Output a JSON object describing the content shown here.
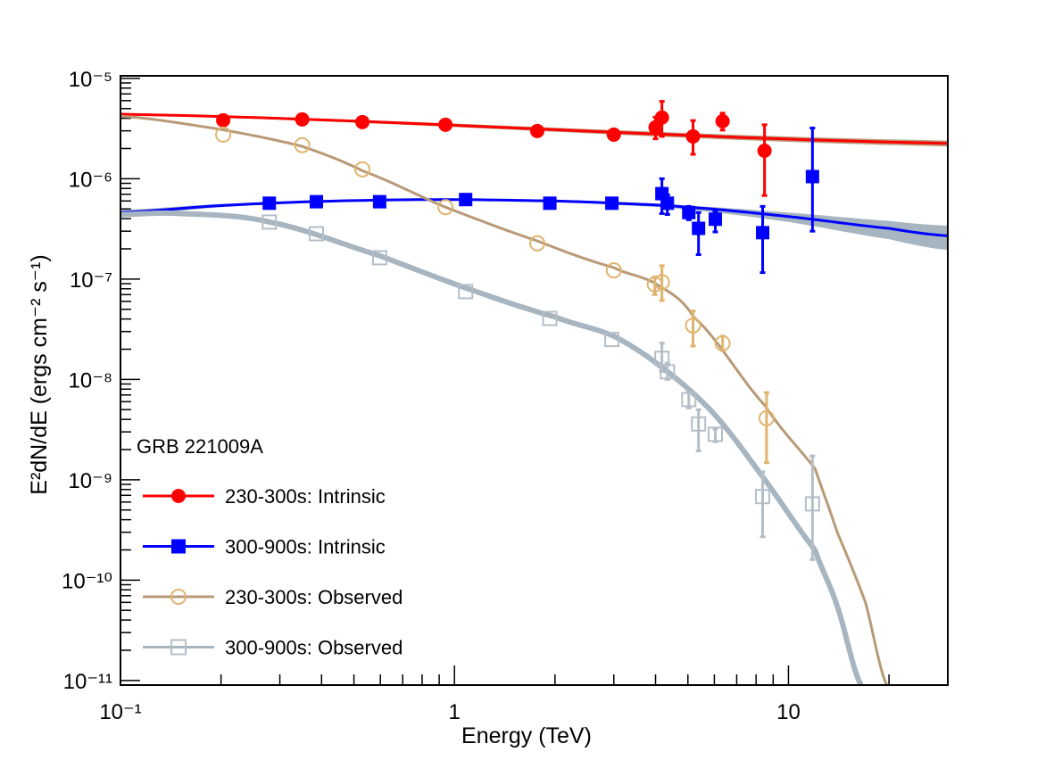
{
  "chart_data": {
    "type": "scatter",
    "title": "",
    "xlabel": "Energy (TeV)",
    "ylabel": "E²dN/dE (ergs cm⁻² s⁻¹)",
    "xscale": "log",
    "yscale": "log",
    "xlim": [
      0.1,
      30
    ],
    "ylim": [
      9e-12,
      1.06e-05
    ],
    "grid": false,
    "x_tick_labels": [
      {
        "value": 0.1,
        "label": "10⁻¹"
      },
      {
        "value": 1,
        "label": "1"
      },
      {
        "value": 10,
        "label": "10"
      }
    ],
    "y_tick_labels": [
      {
        "value": 1e-05,
        "label": "10⁻⁵"
      },
      {
        "value": 1e-06,
        "label": "10⁻⁶"
      },
      {
        "value": 1e-07,
        "label": "10⁻⁷"
      },
      {
        "value": 1e-08,
        "label": "10⁻⁸"
      },
      {
        "value": 1e-09,
        "label": "10⁻⁹"
      },
      {
        "value": 1e-10,
        "label": "10⁻¹⁰"
      },
      {
        "value": 1e-11,
        "label": "10⁻¹¹"
      }
    ],
    "legend": {
      "title": "GRB 221009A",
      "placement": "bottom-left"
    },
    "series": [
      {
        "name": "230-300s: Intrinsic",
        "color": "#ff0000",
        "marker": "filled-circle",
        "points": [
          {
            "x": 0.203,
            "y": 3.82e-06
          },
          {
            "x": 0.35,
            "y": 3.9e-06
          },
          {
            "x": 0.53,
            "y": 3.67e-06
          },
          {
            "x": 0.94,
            "y": 3.45e-06
          },
          {
            "x": 1.77,
            "y": 2.99e-06
          },
          {
            "x": 3.0,
            "y": 2.75e-06
          },
          {
            "x": 4.0,
            "y": 3.25e-06,
            "ylo": 2.5e-06,
            "yhi": 4.1e-06
          },
          {
            "x": 4.18,
            "y": 4.07e-06,
            "ylo": 2.64e-06,
            "yhi": 5.9e-06
          },
          {
            "x": 5.18,
            "y": 2.64e-06,
            "ylo": 1.75e-06,
            "yhi": 3.8e-06
          },
          {
            "x": 6.35,
            "y": 3.74e-06,
            "ylo": 3.05e-06,
            "yhi": 4.5e-06
          },
          {
            "x": 8.48,
            "y": 1.9e-06,
            "ylo": 6.8e-07,
            "yhi": 3.45e-06
          }
        ],
        "model": {
          "color": "#ff0000",
          "band_color": "#b89a78",
          "x": [
            0.1,
            30
          ],
          "y": [
            4.4e-06,
            2.25e-06
          ],
          "band_lo": [
            4.3e-06,
            2.1e-06
          ],
          "band_hi": [
            4.5e-06,
            2.4e-06
          ]
        }
      },
      {
        "name": "300-900s: Intrinsic",
        "color": "#0000ff",
        "marker": "filled-square",
        "points": [
          {
            "x": 0.279,
            "y": 5.7e-07
          },
          {
            "x": 0.386,
            "y": 5.9e-07
          },
          {
            "x": 0.597,
            "y": 5.9e-07
          },
          {
            "x": 1.08,
            "y": 6.2e-07
          },
          {
            "x": 1.93,
            "y": 5.7e-07
          },
          {
            "x": 2.96,
            "y": 5.7e-07
          },
          {
            "x": 4.18,
            "y": 7.1e-07,
            "ylo": 4.5e-07,
            "yhi": 1e-06
          },
          {
            "x": 4.34,
            "y": 5.7e-07,
            "ylo": 4.4e-07,
            "yhi": 6.9e-07
          },
          {
            "x": 5.03,
            "y": 4.6e-07,
            "ylo": 3.9e-07,
            "yhi": 5.3e-07
          },
          {
            "x": 5.38,
            "y": 3.2e-07,
            "ylo": 1.75e-07,
            "yhi": 4.6e-07
          },
          {
            "x": 6.04,
            "y": 3.95e-07,
            "ylo": 2.95e-07,
            "yhi": 4.7e-07
          },
          {
            "x": 8.37,
            "y": 2.9e-07,
            "ylo": 1.16e-07,
            "yhi": 5.3e-07
          },
          {
            "x": 11.8,
            "y": 1.05e-06,
            "ylo": 3e-07,
            "yhi": 3.2e-06
          }
        ],
        "model": {
          "color": "#0000ff",
          "band_color": "#a7b5c0",
          "x": [
            0.1,
            0.2,
            0.4,
            0.9,
            2,
            3,
            5,
            10,
            20,
            30
          ],
          "y": [
            4.6e-07,
            5.4e-07,
            5.95e-07,
            6.2e-07,
            6e-07,
            5.7e-07,
            5.2e-07,
            4.2e-07,
            3.2e-07,
            2.7e-07
          ],
          "band_lo": [
            4.3e-07,
            5.2e-07,
            5.8e-07,
            6.05e-07,
            5.85e-07,
            5.5e-07,
            4.9e-07,
            3.7e-07,
            2.5e-07,
            1.95e-07
          ],
          "band_hi": [
            4.9e-07,
            5.6e-07,
            6.1e-07,
            6.35e-07,
            6.15e-07,
            5.9e-07,
            5.4e-07,
            4.6e-07,
            3.8e-07,
            3.4e-07
          ]
        }
      },
      {
        "name": "230-300s: Observed",
        "color": "#e0b46e",
        "marker": "open-circle",
        "points": [
          {
            "x": 0.203,
            "y": 2.75e-06
          },
          {
            "x": 0.35,
            "y": 2.16e-06
          },
          {
            "x": 0.53,
            "y": 1.24e-06
          },
          {
            "x": 0.94,
            "y": 5.2e-07
          },
          {
            "x": 1.77,
            "y": 2.27e-07
          },
          {
            "x": 3.0,
            "y": 1.22e-07
          },
          {
            "x": 3.98,
            "y": 8.85e-08,
            "ylo": 7e-08,
            "yhi": 1.05e-07
          },
          {
            "x": 4.18,
            "y": 9.3e-08,
            "ylo": 6.1e-08,
            "yhi": 1.36e-07
          },
          {
            "x": 5.18,
            "y": 3.45e-08,
            "ylo": 2.15e-08,
            "yhi": 4.8e-08
          },
          {
            "x": 6.35,
            "y": 2.29e-08,
            "ylo": 1.95e-08,
            "yhi": 2.7e-08
          },
          {
            "x": 8.6,
            "y": 4.1e-09,
            "ylo": 1.48e-09,
            "yhi": 7.4e-09
          }
        ],
        "model": {
          "color": "#b89a78",
          "x": [
            0.1,
            0.2,
            0.35,
            0.53,
            0.94,
            1.77,
            3,
            4,
            5.2,
            8.5,
            12,
            14,
            17,
            19.7
          ],
          "y": [
            4.2e-06,
            3.1e-06,
            2.1e-06,
            1.2e-06,
            5.2e-07,
            2.4e-07,
            1.3e-07,
            9e-08,
            4.2e-08,
            5.5e-09,
            1.3e-09,
            3e-10,
            6e-11,
            9e-12
          ]
        }
      },
      {
        "name": "300-900s: Observed",
        "color": "#b4bec8",
        "marker": "open-square",
        "points": [
          {
            "x": 0.279,
            "y": 3.7e-07
          },
          {
            "x": 0.386,
            "y": 2.83e-07
          },
          {
            "x": 0.597,
            "y": 1.63e-07
          },
          {
            "x": 1.08,
            "y": 7.5e-08
          },
          {
            "x": 1.93,
            "y": 4.05e-08
          },
          {
            "x": 2.96,
            "y": 2.5e-08
          },
          {
            "x": 4.18,
            "y": 1.62e-08,
            "ylo": 1.2e-08,
            "yhi": 2.3e-08
          },
          {
            "x": 4.34,
            "y": 1.19e-08,
            "ylo": 1e-08,
            "yhi": 1.45e-08
          },
          {
            "x": 5.03,
            "y": 6.3e-09,
            "ylo": 5.2e-09,
            "yhi": 7.4e-09
          },
          {
            "x": 5.38,
            "y": 3.6e-09,
            "ylo": 1.94e-09,
            "yhi": 5e-09
          },
          {
            "x": 6.04,
            "y": 2.84e-09,
            "ylo": 2.4e-09,
            "yhi": 3.2e-09
          },
          {
            "x": 8.37,
            "y": 6.8e-10,
            "ylo": 2.7e-10,
            "yhi": 1.2e-09
          },
          {
            "x": 11.8,
            "y": 5.75e-10,
            "ylo": 1.6e-10,
            "yhi": 1.73e-09
          }
        ],
        "model": {
          "color": "#a7b5c0",
          "x": [
            0.1,
            0.15,
            0.28,
            0.6,
            1.1,
            2,
            3,
            4.2,
            6,
            8.5,
            12,
            14,
            16.5
          ],
          "y": [
            4.4e-07,
            4.5e-07,
            3.7e-07,
            1.7e-07,
            8e-08,
            4.2e-08,
            2.7e-08,
            1.3e-08,
            4.5e-09,
            1e-09,
            2e-10,
            5.5e-11,
            9e-12
          ]
        }
      }
    ]
  }
}
